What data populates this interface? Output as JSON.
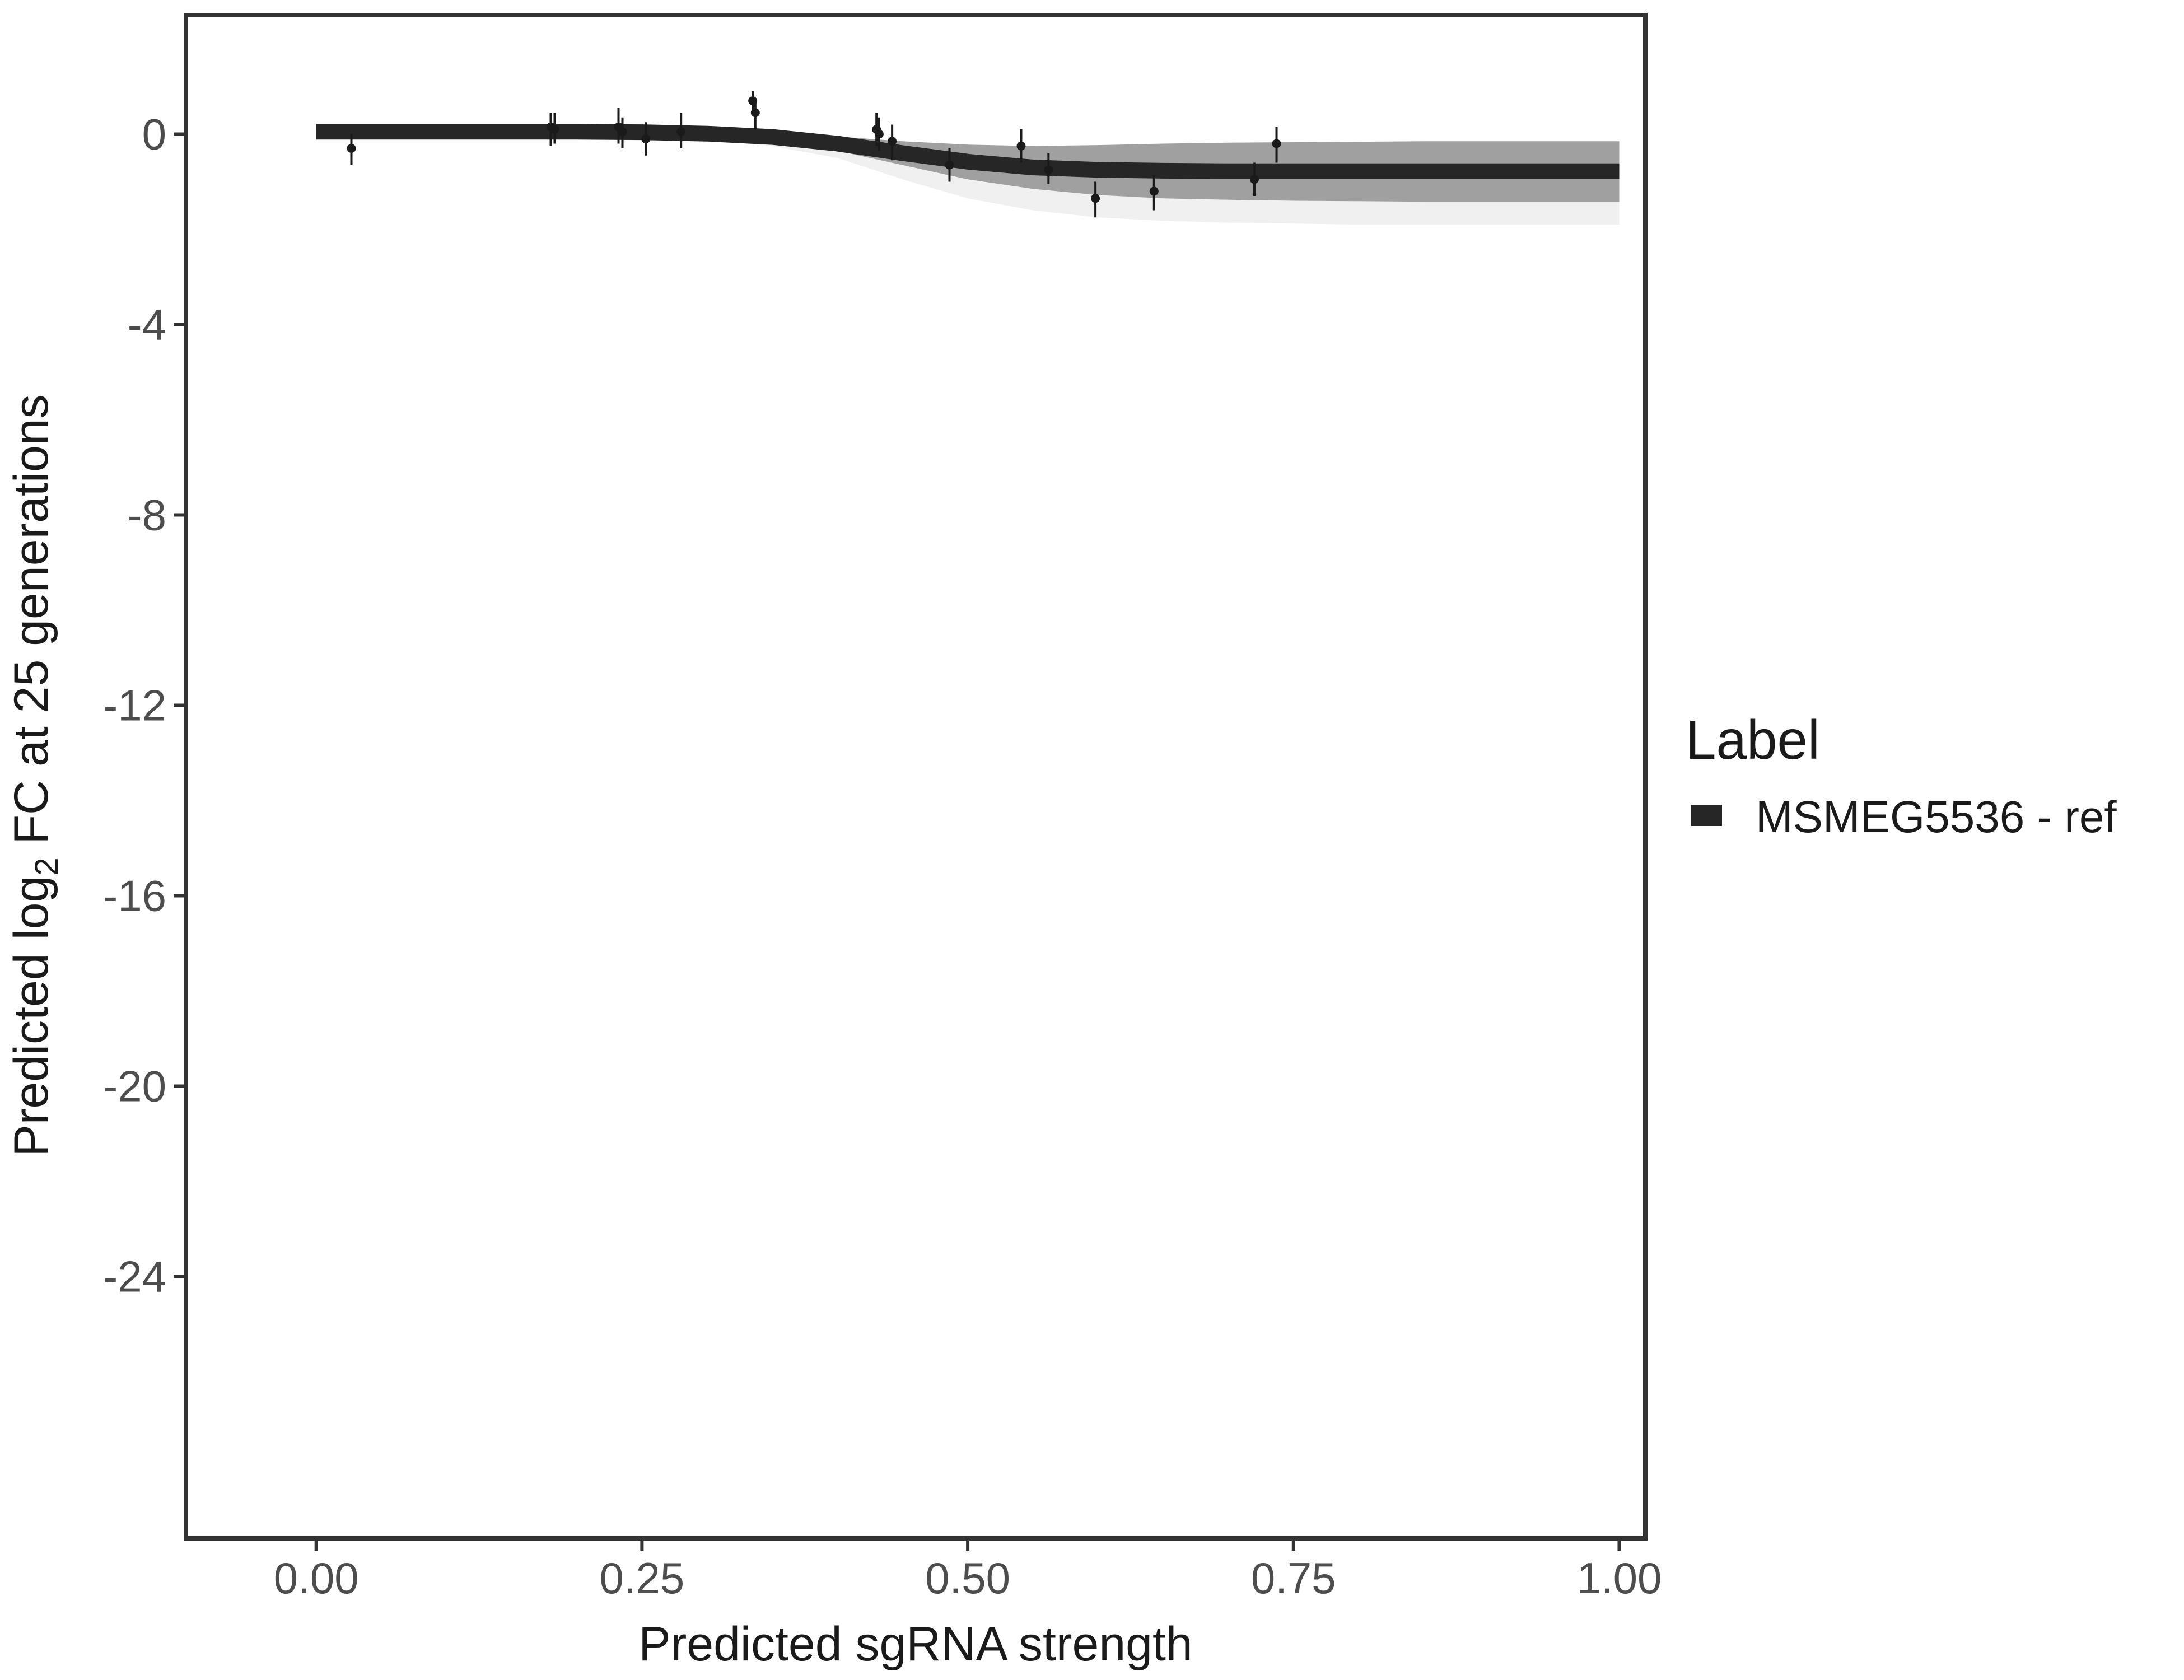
{
  "chart_data": {
    "type": "line",
    "xlabel": "Predicted sgRNA strength",
    "ylabel": {
      "prefix": "Predicted  log",
      "subscript": "2",
      "suffix": " FC at 25 generations"
    },
    "xlim": [
      -0.1,
      1.02
    ],
    "ylim": [
      -29.5,
      2.5
    ],
    "x_ticks": [
      0.0,
      0.25,
      0.5,
      0.75,
      1.0
    ],
    "x_tick_labels": [
      "0.00",
      "0.25",
      "0.50",
      "0.75",
      "1.00"
    ],
    "y_ticks": [
      0,
      -4,
      -8,
      -12,
      -16,
      -20,
      -24
    ],
    "y_tick_labels": [
      "0",
      "-4",
      "-8",
      "-12",
      "-16",
      "-20",
      "-24"
    ],
    "grid": false,
    "legend": {
      "title": "Label",
      "position": "right",
      "entries": [
        {
          "label": "MSMEG5536 - ref",
          "color": "#262626"
        }
      ]
    },
    "colors": {
      "line": "#262626",
      "band": "#808080",
      "points": "#1a1a1a",
      "frame": "#333333"
    },
    "series": [
      {
        "name": "MSMEG5536 - ref",
        "type": "line",
        "x": [
          0.0,
          0.05,
          0.1,
          0.15,
          0.2,
          0.25,
          0.3,
          0.35,
          0.4,
          0.45,
          0.5,
          0.55,
          0.6,
          0.65,
          0.7,
          0.75,
          0.8,
          0.85,
          0.9,
          0.95,
          1.0
        ],
        "y": [
          0.05,
          0.05,
          0.05,
          0.05,
          0.05,
          0.04,
          0.01,
          -0.06,
          -0.2,
          -0.4,
          -0.58,
          -0.7,
          -0.75,
          -0.77,
          -0.78,
          -0.78,
          -0.78,
          -0.78,
          -0.78,
          -0.78,
          -0.78
        ],
        "band_lower": [
          0.0,
          0.0,
          0.0,
          0.0,
          -0.01,
          -0.03,
          -0.07,
          -0.16,
          -0.35,
          -0.65,
          -0.95,
          -1.15,
          -1.28,
          -1.35,
          -1.38,
          -1.4,
          -1.41,
          -1.42,
          -1.42,
          -1.42,
          -1.42
        ],
        "band_upper": [
          0.05,
          0.05,
          0.05,
          0.05,
          0.05,
          0.05,
          0.04,
          0.02,
          -0.05,
          -0.15,
          -0.22,
          -0.25,
          -0.23,
          -0.2,
          -0.18,
          -0.17,
          -0.16,
          -0.15,
          -0.15,
          -0.15,
          -0.15
        ],
        "faint_lower": [
          0.0,
          0.0,
          0.0,
          -0.01,
          -0.02,
          -0.05,
          -0.12,
          -0.25,
          -0.5,
          -0.95,
          -1.35,
          -1.6,
          -1.75,
          -1.82,
          -1.86,
          -1.88,
          -1.9,
          -1.9,
          -1.9,
          -1.9,
          -1.9
        ]
      },
      {
        "name": "MSMEG5536 - ref",
        "type": "scatter",
        "points": [
          {
            "x": 0.027,
            "y": -0.3,
            "lo": -0.65,
            "hi": 0.0
          },
          {
            "x": 0.18,
            "y": 0.15,
            "lo": -0.25,
            "hi": 0.45
          },
          {
            "x": 0.183,
            "y": 0.1,
            "lo": -0.2,
            "hi": 0.45
          },
          {
            "x": 0.232,
            "y": 0.15,
            "lo": -0.2,
            "hi": 0.55
          },
          {
            "x": 0.235,
            "y": 0.05,
            "lo": -0.3,
            "hi": 0.35
          },
          {
            "x": 0.253,
            "y": -0.1,
            "lo": -0.45,
            "hi": 0.25
          },
          {
            "x": 0.28,
            "y": 0.05,
            "lo": -0.3,
            "hi": 0.45
          },
          {
            "x": 0.335,
            "y": 0.7,
            "lo": 0.45,
            "hi": 0.9
          },
          {
            "x": 0.337,
            "y": 0.45,
            "lo": 0.1,
            "hi": 0.75
          },
          {
            "x": 0.43,
            "y": 0.1,
            "lo": -0.25,
            "hi": 0.45
          },
          {
            "x": 0.432,
            "y": 0.0,
            "lo": -0.35,
            "hi": 0.35
          },
          {
            "x": 0.442,
            "y": -0.15,
            "lo": -0.55,
            "hi": 0.2
          },
          {
            "x": 0.486,
            "y": -0.65,
            "lo": -1.0,
            "hi": -0.3
          },
          {
            "x": 0.541,
            "y": -0.25,
            "lo": -0.6,
            "hi": 0.1
          },
          {
            "x": 0.562,
            "y": -0.75,
            "lo": -1.05,
            "hi": -0.4
          },
          {
            "x": 0.598,
            "y": -1.35,
            "lo": -1.75,
            "hi": -1.0
          },
          {
            "x": 0.643,
            "y": -1.2,
            "lo": -1.6,
            "hi": -0.85
          },
          {
            "x": 0.72,
            "y": -0.95,
            "lo": -1.3,
            "hi": -0.6
          },
          {
            "x": 0.737,
            "y": -0.2,
            "lo": -0.6,
            "hi": 0.15
          }
        ]
      }
    ]
  }
}
